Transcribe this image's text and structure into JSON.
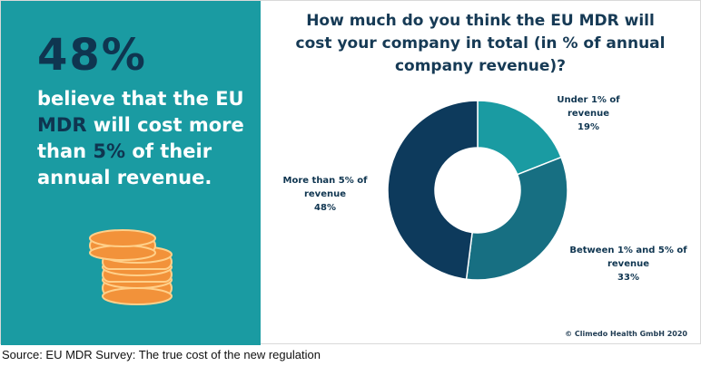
{
  "left_panel": {
    "headline_pct": "48%",
    "tagline": {
      "p1": "believe that the EU ",
      "p2": "MDR",
      "p3": " will cost more than ",
      "p4": "5%",
      "p5": " of their annual revenue."
    },
    "icon": "coin-stack-icon",
    "colors": {
      "background": "#1a9ba2",
      "accent": "#0f3550",
      "coin": "#f2923a"
    }
  },
  "chart_data": {
    "type": "pie",
    "title": "How much do you think the EU MDR will cost your company in total (in % of annual company revenue)?",
    "donut": true,
    "slices": [
      {
        "label": "Under 1% of revenue",
        "value": 19,
        "display": "19%",
        "color": "#1a9ba2"
      },
      {
        "label": "Between 1% and 5% of revenue",
        "value": 33,
        "display": "33%",
        "color": "#176f82"
      },
      {
        "label": "More than 5% of revenue",
        "value": 48,
        "display": "48%",
        "color": "#0d3a5c"
      }
    ]
  },
  "footer": {
    "copyright": "© Climedo Health GmbH 2020",
    "source": "Source: EU MDR Survey: The true cost of the new regulation"
  }
}
